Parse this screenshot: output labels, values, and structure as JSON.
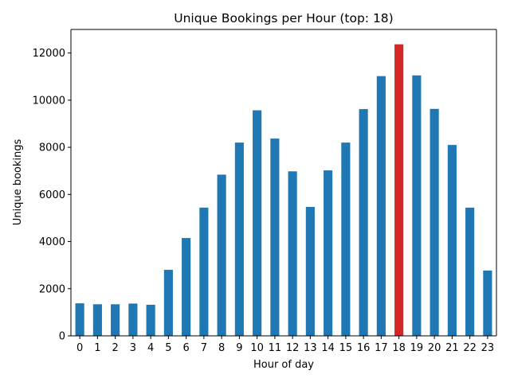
{
  "chart_data": {
    "type": "bar",
    "title": "Unique Bookings per Hour (top: 18)",
    "xlabel": "Hour of day",
    "ylabel": "Unique bookings",
    "categories": [
      "0",
      "1",
      "2",
      "3",
      "4",
      "5",
      "6",
      "7",
      "8",
      "9",
      "10",
      "11",
      "12",
      "13",
      "14",
      "15",
      "16",
      "17",
      "18",
      "19",
      "20",
      "21",
      "22",
      "23"
    ],
    "values": [
      1380,
      1340,
      1340,
      1370,
      1320,
      2800,
      4150,
      5440,
      6840,
      8200,
      9570,
      8370,
      6980,
      5470,
      7020,
      8200,
      9620,
      11020,
      12370,
      11050,
      9630,
      8100,
      5440,
      2770
    ],
    "highlight_category": "18",
    "ylim": [
      0,
      13000
    ],
    "yticks": [
      0,
      2000,
      4000,
      6000,
      8000,
      10000,
      12000
    ],
    "grid": false,
    "legend": "none",
    "colors": {
      "bar": "#1f77b4",
      "highlight": "#d62728",
      "axis": "#000000"
    }
  }
}
